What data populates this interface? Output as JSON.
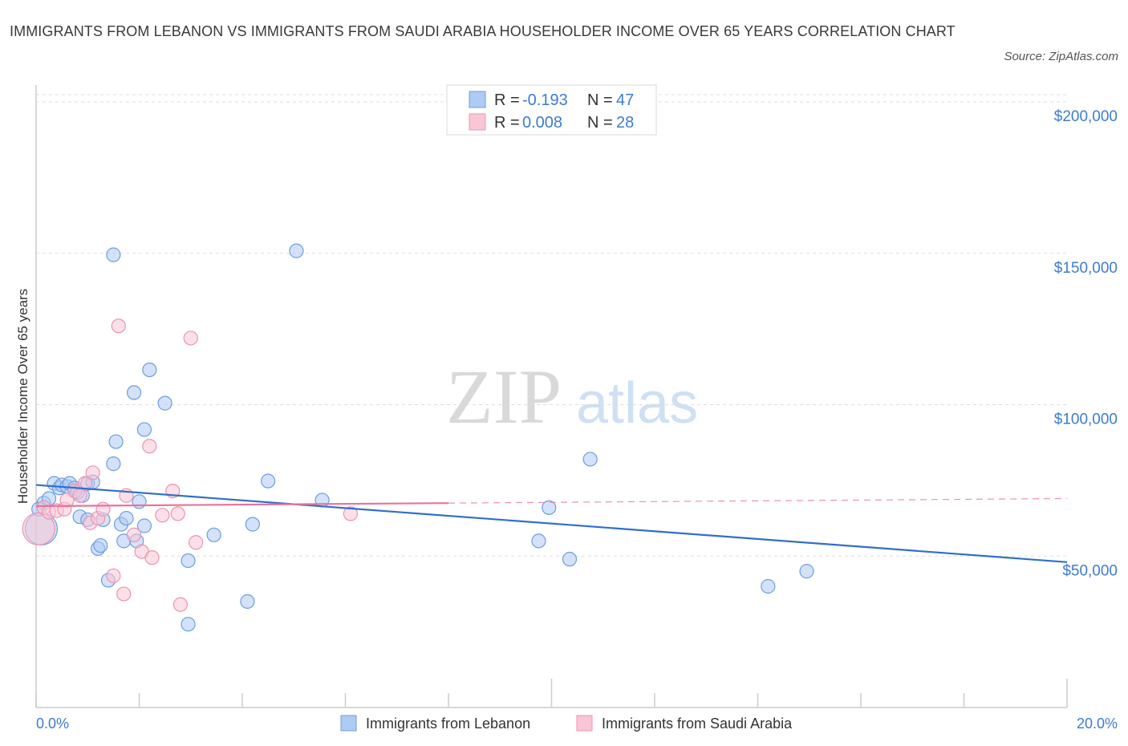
{
  "title": "IMMIGRANTS FROM LEBANON VS IMMIGRANTS FROM SAUDI ARABIA HOUSEHOLDER INCOME OVER 65 YEARS CORRELATION CHART",
  "source": "Source: ZipAtlas.com",
  "watermark": {
    "zip": "ZIP",
    "atlas": "atlas"
  },
  "legend_top": {
    "rows": [
      {
        "r_label": "R = ",
        "r_value": "-0.193",
        "n_label": "N = ",
        "n_value": "47"
      },
      {
        "r_label": "R = ",
        "r_value": "0.008",
        "n_label": "N = ",
        "n_value": "28"
      }
    ]
  },
  "colors": {
    "lebanon_fill": "#aecbf3",
    "lebanon_stroke": "#6a9ee0",
    "lebanon_line": "#2f6fcb",
    "saudi_fill": "#f9c6d6",
    "saudi_stroke": "#ec93b0",
    "saudi_line": "#e8749b",
    "axis_text": "#3d7bd1",
    "grid": "#dddddd"
  },
  "chart_data": {
    "type": "scatter",
    "title": "IMMIGRANTS FROM LEBANON VS IMMIGRANTS FROM SAUDI ARABIA HOUSEHOLDER INCOME OVER 65 YEARS CORRELATION CHART",
    "xlabel": "",
    "ylabel": "Householder Income Over 65 years",
    "xlim": [
      0,
      20
    ],
    "ylim": [
      0,
      200000
    ],
    "x_tick_labels": [
      "0.0%",
      "20.0%"
    ],
    "y_ticks": [
      50000,
      100000,
      150000,
      200000
    ],
    "y_tick_labels": [
      "$50,000",
      "$100,000",
      "$150,000",
      "$200,000"
    ],
    "grid": true,
    "legend": "bottom",
    "series": [
      {
        "name": "Immigrants from Lebanon",
        "r": -0.193,
        "n": 47,
        "trend": {
          "x": [
            0,
            20
          ],
          "y": [
            73500,
            48000
          ]
        },
        "points": [
          {
            "x": 0.1,
            "y": 59000,
            "big": true
          },
          {
            "x": 0.15,
            "y": 67500
          },
          {
            "x": 0.25,
            "y": 69000
          },
          {
            "x": 0.35,
            "y": 74000
          },
          {
            "x": 0.45,
            "y": 72500
          },
          {
            "x": 0.5,
            "y": 73500
          },
          {
            "x": 0.6,
            "y": 73000
          },
          {
            "x": 0.65,
            "y": 74000
          },
          {
            "x": 0.75,
            "y": 72500
          },
          {
            "x": 0.8,
            "y": 71000
          },
          {
            "x": 0.9,
            "y": 70000
          },
          {
            "x": 1.0,
            "y": 74000
          },
          {
            "x": 1.1,
            "y": 74500
          },
          {
            "x": 0.85,
            "y": 63000
          },
          {
            "x": 1.0,
            "y": 62000
          },
          {
            "x": 1.3,
            "y": 62000
          },
          {
            "x": 1.2,
            "y": 52500
          },
          {
            "x": 1.25,
            "y": 53500
          },
          {
            "x": 1.4,
            "y": 42000
          },
          {
            "x": 1.5,
            "y": 80500
          },
          {
            "x": 1.5,
            "y": 149500
          },
          {
            "x": 1.55,
            "y": 87800
          },
          {
            "x": 1.65,
            "y": 60500
          },
          {
            "x": 1.7,
            "y": 55000
          },
          {
            "x": 1.75,
            "y": 62500
          },
          {
            "x": 1.9,
            "y": 104000
          },
          {
            "x": 1.95,
            "y": 55000
          },
          {
            "x": 2.0,
            "y": 68000
          },
          {
            "x": 2.1,
            "y": 60000
          },
          {
            "x": 2.1,
            "y": 91800
          },
          {
            "x": 2.2,
            "y": 111500
          },
          {
            "x": 2.5,
            "y": 100500
          },
          {
            "x": 2.95,
            "y": 48500
          },
          {
            "x": 2.95,
            "y": 27500
          },
          {
            "x": 3.45,
            "y": 57000
          },
          {
            "x": 4.1,
            "y": 35000
          },
          {
            "x": 4.2,
            "y": 60500
          },
          {
            "x": 4.5,
            "y": 74800
          },
          {
            "x": 5.05,
            "y": 150800
          },
          {
            "x": 5.55,
            "y": 68500
          },
          {
            "x": 9.75,
            "y": 55000
          },
          {
            "x": 9.95,
            "y": 66000
          },
          {
            "x": 10.35,
            "y": 49000
          },
          {
            "x": 10.75,
            "y": 82000
          },
          {
            "x": 14.2,
            "y": 40000
          },
          {
            "x": 14.95,
            "y": 45000
          },
          {
            "x": 0.05,
            "y": 65500
          }
        ]
      },
      {
        "name": "Immigrants from Saudi Arabia",
        "r": 0.008,
        "n": 28,
        "trend": {
          "x": [
            0,
            8
          ],
          "y": [
            66500,
            67500
          ]
        },
        "trend_ext": {
          "x": [
            8,
            20
          ],
          "y": [
            67500,
            69000
          ]
        },
        "points": [
          {
            "x": 0.05,
            "y": 59000,
            "big": true
          },
          {
            "x": 0.15,
            "y": 66000
          },
          {
            "x": 0.25,
            "y": 64500
          },
          {
            "x": 0.4,
            "y": 65000
          },
          {
            "x": 0.55,
            "y": 65500
          },
          {
            "x": 0.6,
            "y": 68500
          },
          {
            "x": 0.75,
            "y": 71500
          },
          {
            "x": 0.85,
            "y": 70000
          },
          {
            "x": 0.95,
            "y": 74000
          },
          {
            "x": 1.05,
            "y": 61000
          },
          {
            "x": 1.1,
            "y": 77500
          },
          {
            "x": 1.2,
            "y": 62500
          },
          {
            "x": 1.3,
            "y": 65500
          },
          {
            "x": 1.5,
            "y": 43500
          },
          {
            "x": 1.6,
            "y": 126000
          },
          {
            "x": 1.7,
            "y": 37500
          },
          {
            "x": 1.75,
            "y": 70000
          },
          {
            "x": 1.9,
            "y": 57000
          },
          {
            "x": 2.05,
            "y": 51500
          },
          {
            "x": 2.2,
            "y": 86300
          },
          {
            "x": 2.25,
            "y": 49500
          },
          {
            "x": 2.45,
            "y": 63500
          },
          {
            "x": 2.65,
            "y": 71500
          },
          {
            "x": 2.75,
            "y": 64000
          },
          {
            "x": 2.8,
            "y": 34000
          },
          {
            "x": 3.0,
            "y": 122000
          },
          {
            "x": 3.1,
            "y": 54500
          },
          {
            "x": 6.1,
            "y": 64000
          }
        ]
      }
    ]
  }
}
